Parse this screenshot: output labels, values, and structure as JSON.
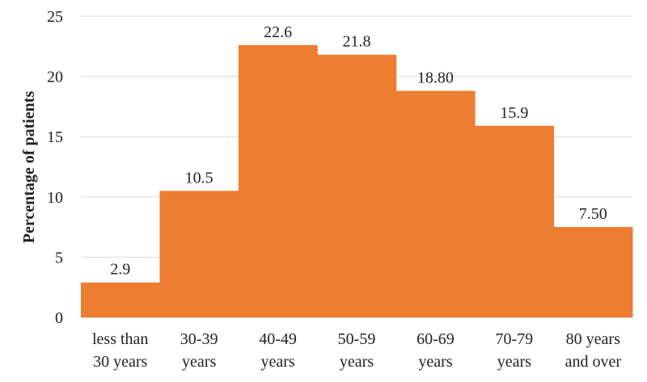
{
  "chart_data": {
    "type": "bar",
    "categories": [
      [
        "less than",
        "30 years"
      ],
      [
        "30-39",
        "years"
      ],
      [
        "40-49",
        "years"
      ],
      [
        "50-59",
        "years"
      ],
      [
        "60-69",
        "years"
      ],
      [
        "70-79",
        "years"
      ],
      [
        "80 years",
        "and over"
      ]
    ],
    "values": [
      2.9,
      10.5,
      22.6,
      21.8,
      18.8,
      15.9,
      7.5
    ],
    "data_labels": [
      "2.9",
      "10.5",
      "22.6",
      "21.8",
      "18.80",
      "15.9",
      "7.50"
    ],
    "title": "",
    "xlabel": "",
    "ylabel": "Percentage of patients",
    "ylim": [
      0,
      25
    ],
    "yticks": [
      "0",
      "5",
      "10",
      "15",
      "20",
      "25"
    ],
    "grid": true,
    "legend": "none",
    "bar_color": "#ED7D31"
  }
}
